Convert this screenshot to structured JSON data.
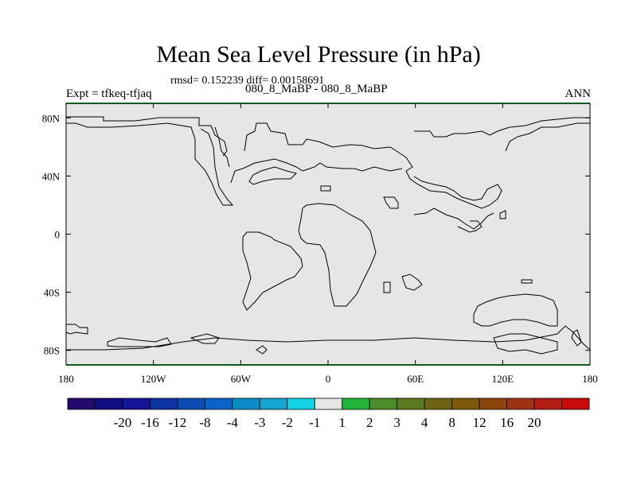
{
  "chart_data": {
    "type": "heatmap",
    "title": "Mean Sea Level Pressure (in hPa)",
    "stats_text": "rmsd= 0.152239 diff= 0.00158691",
    "subtitle": "080_8_MaBP - 080_8_MaBP",
    "left_label": "Expt = tfkeq-tfjaq",
    "right_label": "ANN",
    "x_ticks": [
      "180",
      "120W",
      "60W",
      "0",
      "60E",
      "120E",
      "180"
    ],
    "y_ticks": [
      "80N",
      "40N",
      "0",
      "40S",
      "80S"
    ],
    "x_range": [
      -180,
      180
    ],
    "y_range": [
      -90,
      90
    ],
    "field_value_bin": "-1 to 1",
    "field_color": "#e6e6e6",
    "colorbar": {
      "colors": [
        "#230b6e",
        "#0e0e82",
        "#141496",
        "#0a32a0",
        "#0a4bb4",
        "#0a64c8",
        "#0a8cc8",
        "#14a5d2",
        "#14d2e6",
        "#e6e6e6",
        "#23b43c",
        "#4b8c28",
        "#5a7a1e",
        "#6e6414",
        "#7d5a0a",
        "#8c460a",
        "#a03214",
        "#b41e14",
        "#c80a0a"
      ],
      "labels": [
        "-20",
        "-16",
        "-12",
        "-8",
        "-4",
        "-3",
        "-2",
        "-1",
        "1",
        "2",
        "3",
        "4",
        "8",
        "12",
        "16",
        "20"
      ]
    }
  }
}
